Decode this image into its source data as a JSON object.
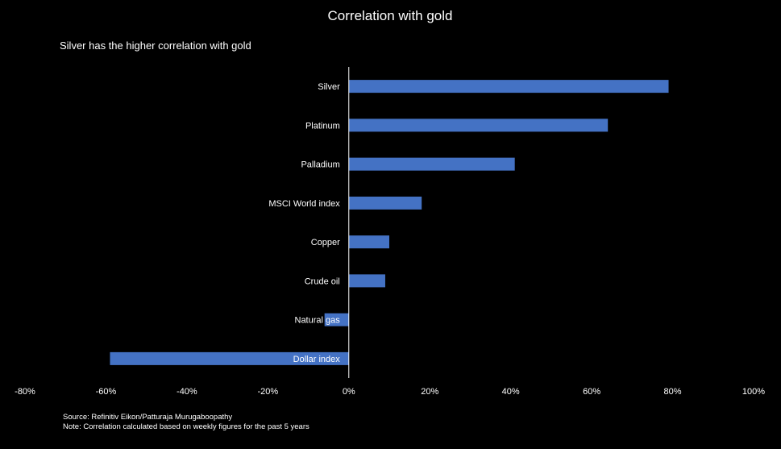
{
  "chart_data": {
    "type": "bar",
    "orientation": "horizontal",
    "title": "Correlation with gold",
    "subtitle": "Silver has the higher correlation with gold",
    "categories": [
      "Silver",
      "Platinum",
      "Palladium",
      "MSCI World index",
      "Copper",
      "Crude oil",
      "Natural gas",
      "Dollar index"
    ],
    "values": [
      79,
      64,
      41,
      18,
      10,
      9,
      -6,
      -59
    ],
    "xlim": [
      -80,
      100
    ],
    "xticks": [
      "-80%",
      "-60%",
      "-40%",
      "-20%",
      "0%",
      "20%",
      "40%",
      "60%",
      "80%",
      "100%"
    ],
    "xtick_values": [
      -80,
      -60,
      -40,
      -20,
      0,
      20,
      40,
      60,
      80,
      100
    ],
    "bar_color": "#4472C4",
    "grid": false,
    "legend": "none"
  },
  "footnotes": {
    "source": "Source: Refinitiv Eikon/Patturaja Murugaboopathy",
    "note": "Note: Correlation calculated based on  weekly figures for the past 5 years"
  },
  "colors": {
    "background": "#000000",
    "text": "#ffffff",
    "axis": "#ffffff"
  }
}
